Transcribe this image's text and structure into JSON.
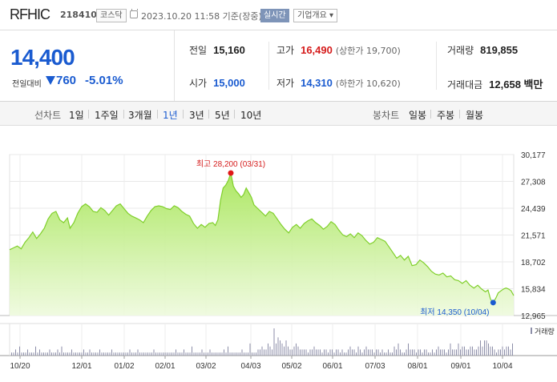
{
  "header": {
    "name": "RFHIC",
    "code": "218410",
    "market": "코스닥",
    "datetime": "2023.10.20 11:58 기준(장중)",
    "live_label": "실시간",
    "info_label": "기업개요 ▾"
  },
  "quote": {
    "price": "14,400",
    "change_label": "전일대비",
    "change_amount": "760",
    "change_pct": "-5.01%",
    "prev_close_label": "전일",
    "prev_close": "15,160",
    "high_label": "고가",
    "high": "16,490",
    "upper_limit": "(상한가 19,700)",
    "volume_label": "거래량",
    "volume": "819,855",
    "open_label": "시가",
    "open": "15,000",
    "low_label": "저가",
    "low": "14,310",
    "lower_limit": "(하한가 10,620)",
    "value_label": "거래대금",
    "value": "12,658 백만"
  },
  "toolbar": {
    "line_label": "선차트",
    "line_periods": [
      "1일",
      "1주일",
      "3개월",
      "1년",
      "3년",
      "5년",
      "10년"
    ],
    "selected": "1년",
    "candle_label": "봉차트",
    "candle_periods": [
      "일봉",
      "주봉",
      "월봉"
    ]
  },
  "colors": {
    "price_down": "#1a5bd0",
    "price_up": "#d51b1b",
    "area_line": "#7fcf2a",
    "volume_bar": "#8c8ea8"
  },
  "chart_data": {
    "type": "area",
    "y_ticks": [
      "30,177",
      "27,308",
      "24,439",
      "21,571",
      "18,702",
      "15,834",
      "12,965"
    ],
    "ylim": [
      12965,
      30177
    ],
    "x_ticks": [
      "10/20",
      "12/01",
      "01/02",
      "02/01",
      "03/02",
      "04/03",
      "05/02",
      "06/01",
      "07/03",
      "08/01",
      "09/01",
      "10/04"
    ],
    "high_annotation": "최고 28,200 (03/31)",
    "low_annotation": "최저 14,350 (10/04)",
    "volume_label": "거래량",
    "price": [
      [
        0,
        20000
      ],
      [
        3,
        20200
      ],
      [
        6,
        20400
      ],
      [
        9,
        20100
      ],
      [
        12,
        20800
      ],
      [
        15,
        21300
      ],
      [
        18,
        21900
      ],
      [
        21,
        21200
      ],
      [
        24,
        21700
      ],
      [
        27,
        22300
      ],
      [
        30,
        23300
      ],
      [
        33,
        23900
      ],
      [
        36,
        24100
      ],
      [
        39,
        23200
      ],
      [
        42,
        22900
      ],
      [
        45,
        23400
      ],
      [
        47,
        22300
      ],
      [
        50,
        22900
      ],
      [
        53,
        23900
      ],
      [
        56,
        24600
      ],
      [
        59,
        24900
      ],
      [
        62,
        24600
      ],
      [
        65,
        24100
      ],
      [
        68,
        24000
      ],
      [
        71,
        24500
      ],
      [
        74,
        24200
      ],
      [
        77,
        23700
      ],
      [
        80,
        24200
      ],
      [
        83,
        24700
      ],
      [
        86,
        24900
      ],
      [
        89,
        24400
      ],
      [
        92,
        23900
      ],
      [
        95,
        23600
      ],
      [
        98,
        23400
      ],
      [
        101,
        23200
      ],
      [
        104,
        22900
      ],
      [
        107,
        23600
      ],
      [
        110,
        24200
      ],
      [
        113,
        24600
      ],
      [
        116,
        24700
      ],
      [
        119,
        24600
      ],
      [
        122,
        24400
      ],
      [
        125,
        24300
      ],
      [
        128,
        24700
      ],
      [
        131,
        24500
      ],
      [
        134,
        24100
      ],
      [
        137,
        23800
      ],
      [
        140,
        23600
      ],
      [
        143,
        22800
      ],
      [
        146,
        22300
      ],
      [
        149,
        22700
      ],
      [
        152,
        22400
      ],
      [
        155,
        22800
      ],
      [
        158,
        22900
      ],
      [
        160,
        22600
      ],
      [
        162,
        23200
      ],
      [
        164,
        25300
      ],
      [
        166,
        26600
      ],
      [
        168,
        26900
      ],
      [
        170,
        27400
      ],
      [
        172,
        28200
      ],
      [
        174,
        26800
      ],
      [
        176,
        26300
      ],
      [
        178,
        26000
      ],
      [
        180,
        25600
      ],
      [
        182,
        25900
      ],
      [
        184,
        26600
      ],
      [
        186,
        26100
      ],
      [
        188,
        25600
      ],
      [
        190,
        24800
      ],
      [
        193,
        24400
      ],
      [
        196,
        24000
      ],
      [
        199,
        23600
      ],
      [
        202,
        24100
      ],
      [
        205,
        23900
      ],
      [
        208,
        23300
      ],
      [
        211,
        22700
      ],
      [
        214,
        22200
      ],
      [
        217,
        21800
      ],
      [
        220,
        22400
      ],
      [
        223,
        22700
      ],
      [
        226,
        22300
      ],
      [
        229,
        22800
      ],
      [
        232,
        23100
      ],
      [
        235,
        23300
      ],
      [
        238,
        22900
      ],
      [
        241,
        22600
      ],
      [
        244,
        22200
      ],
      [
        247,
        22500
      ],
      [
        250,
        23000
      ],
      [
        253,
        22700
      ],
      [
        256,
        22100
      ],
      [
        259,
        21600
      ],
      [
        262,
        21400
      ],
      [
        265,
        21700
      ],
      [
        268,
        21300
      ],
      [
        271,
        21800
      ],
      [
        274,
        21500
      ],
      [
        277,
        21000
      ],
      [
        280,
        20600
      ],
      [
        283,
        20800
      ],
      [
        286,
        21300
      ],
      [
        289,
        21100
      ],
      [
        292,
        20900
      ],
      [
        295,
        20300
      ],
      [
        298,
        19700
      ],
      [
        301,
        19100
      ],
      [
        304,
        19400
      ],
      [
        307,
        18900
      ],
      [
        310,
        19300
      ],
      [
        313,
        18300
      ],
      [
        316,
        18400
      ],
      [
        319,
        18900
      ],
      [
        322,
        18600
      ],
      [
        325,
        18200
      ],
      [
        328,
        17700
      ],
      [
        331,
        17400
      ],
      [
        334,
        17300
      ],
      [
        337,
        17500
      ],
      [
        340,
        17100
      ],
      [
        343,
        17200
      ],
      [
        346,
        16800
      ],
      [
        349,
        16700
      ],
      [
        352,
        16400
      ],
      [
        355,
        16700
      ],
      [
        358,
        16200
      ],
      [
        361,
        15900
      ],
      [
        364,
        16200
      ],
      [
        367,
        15800
      ],
      [
        370,
        15500
      ],
      [
        372,
        15700
      ],
      [
        374,
        14700
      ],
      [
        376,
        14350
      ],
      [
        378,
        14800
      ],
      [
        380,
        15400
      ],
      [
        382,
        15600
      ],
      [
        384,
        15800
      ],
      [
        386,
        15900
      ],
      [
        388,
        15800
      ],
      [
        390,
        15600
      ],
      [
        392,
        15100
      ]
    ],
    "volume": [
      1,
      1,
      2,
      1,
      3,
      1,
      1,
      1,
      2,
      1,
      1,
      1,
      3,
      1,
      2,
      1,
      1,
      1,
      1,
      2,
      1,
      1,
      1,
      2,
      1,
      3,
      1,
      1,
      1,
      1,
      2,
      1,
      1,
      1,
      1,
      1,
      2,
      1,
      1,
      2,
      1,
      1,
      1,
      1,
      2,
      1,
      1,
      1,
      1,
      1,
      2,
      1,
      1,
      1,
      1,
      1,
      1,
      1,
      1,
      2,
      1,
      1,
      1,
      2,
      1,
      1,
      1,
      1,
      1,
      1,
      1,
      2,
      1,
      1,
      1,
      1,
      1,
      1,
      1,
      1,
      1,
      1,
      2,
      1,
      1,
      1,
      2,
      1,
      1,
      1,
      3,
      1,
      1,
      1,
      1,
      2,
      1,
      1,
      1,
      2,
      1,
      1,
      1,
      1,
      1,
      1,
      2,
      1,
      3,
      1,
      1,
      1,
      1,
      1,
      1,
      2,
      1,
      1,
      1,
      4,
      1,
      1,
      1,
      2,
      2,
      3,
      2,
      2,
      4,
      3,
      2,
      9,
      4,
      6,
      5,
      4,
      3,
      5,
      3,
      2,
      2,
      3,
      4,
      3,
      2,
      2,
      2,
      2,
      1,
      2,
      2,
      3,
      2,
      2,
      2,
      1,
      2,
      2,
      1,
      2,
      2,
      1,
      2,
      2,
      1,
      2,
      1,
      1,
      2,
      3,
      2,
      2,
      1,
      3,
      2,
      1,
      2,
      3,
      2,
      2,
      2,
      1,
      2,
      2,
      1,
      2,
      1,
      1,
      2,
      1,
      1,
      3,
      2,
      4,
      2,
      1,
      1,
      2,
      4,
      2,
      2,
      2,
      1,
      2,
      2,
      1,
      2,
      2,
      1,
      1,
      2,
      1,
      2,
      3,
      2,
      2,
      2,
      1,
      2,
      4,
      2,
      2,
      2,
      4,
      2,
      3,
      3,
      2,
      2,
      3,
      3,
      2,
      2,
      3,
      5,
      3,
      5,
      5,
      4,
      3,
      3,
      2,
      1,
      2,
      2,
      3,
      2,
      3,
      3,
      2,
      4
    ]
  }
}
